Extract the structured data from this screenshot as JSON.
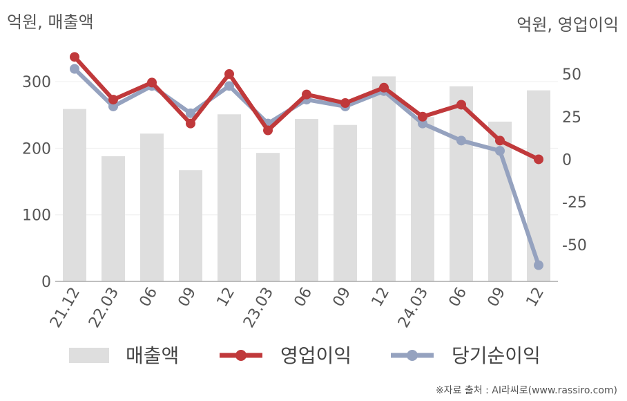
{
  "left_unit": "억원, 매출액",
  "right_unit": "억원, 영업이익",
  "source": "※자료 출처 : AI라씨로(www.rassiro.com)",
  "chart_data": {
    "type": "bar",
    "categories": [
      "21.12",
      "22.03",
      "06",
      "09",
      "12",
      "23.03",
      "06",
      "09",
      "12",
      "24.03",
      "06",
      "09",
      "12"
    ],
    "ylim_left": [
      0,
      350
    ],
    "yticks_left": [
      "0",
      "100",
      "200",
      "300"
    ],
    "ylim_right": [
      -71.5,
      65
    ],
    "yticks_right": [
      "-50",
      "-25",
      "0",
      "25",
      "50"
    ],
    "grid": true,
    "legend_position": "bottom",
    "series": [
      {
        "name": "매출액",
        "kind": "bar",
        "axis": "left",
        "color": "#dedede",
        "values": [
          259,
          188,
          222,
          167,
          251,
          193,
          244,
          235,
          308,
          247,
          293,
          240,
          287
        ]
      },
      {
        "name": "영업이익",
        "kind": "line",
        "axis": "right",
        "color": "#c0393b",
        "values": [
          60,
          35,
          45,
          21,
          50,
          17,
          38,
          33,
          42,
          25,
          32,
          11,
          0
        ]
      },
      {
        "name": "당기순이익",
        "kind": "line",
        "axis": "right",
        "color": "#95a2bf",
        "values": [
          53,
          31,
          43,
          27,
          43,
          21,
          35,
          31,
          40,
          21,
          11,
          5,
          -62
        ]
      }
    ]
  }
}
